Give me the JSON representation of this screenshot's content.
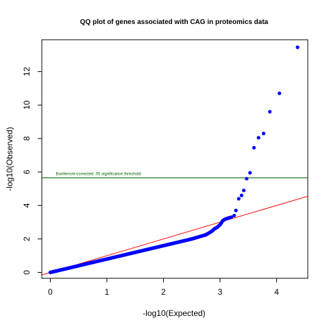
{
  "chart_data": {
    "type": "scatter",
    "title": "QQ plot of genes associated with CAG in proteomics data",
    "xlabel": "-log10(Expected)",
    "ylabel": "-log10(Observed)",
    "xlim": [
      -0.15,
      4.55
    ],
    "ylim": [
      -0.35,
      13.9
    ],
    "xticks": [
      0,
      1,
      2,
      3,
      4
    ],
    "yticks": [
      0,
      2,
      4,
      6,
      8,
      10,
      12
    ],
    "grid": false,
    "legend": "none",
    "point_color": "#0000ff",
    "reference_line": {
      "slope": 1,
      "intercept": 0,
      "color": "#ff0000"
    },
    "threshold": {
      "y": 5.65,
      "color": "#006400",
      "label": "Bonferroni-corrected .05 significance threshold"
    },
    "points": [
      [
        0.0,
        0.0
      ],
      [
        0.05,
        0.04
      ],
      [
        0.1,
        0.08
      ],
      [
        0.15,
        0.12
      ],
      [
        0.2,
        0.16
      ],
      [
        0.25,
        0.2
      ],
      [
        0.3,
        0.24
      ],
      [
        0.35,
        0.28
      ],
      [
        0.4,
        0.32
      ],
      [
        0.45,
        0.36
      ],
      [
        0.5,
        0.4
      ],
      [
        0.55,
        0.44
      ],
      [
        0.6,
        0.48
      ],
      [
        0.65,
        0.52
      ],
      [
        0.7,
        0.56
      ],
      [
        0.75,
        0.6
      ],
      [
        0.8,
        0.64
      ],
      [
        0.85,
        0.68
      ],
      [
        0.9,
        0.72
      ],
      [
        0.95,
        0.76
      ],
      [
        1.0,
        0.8
      ],
      [
        1.05,
        0.84
      ],
      [
        1.1,
        0.88
      ],
      [
        1.15,
        0.92
      ],
      [
        1.2,
        0.96
      ],
      [
        1.25,
        1.0
      ],
      [
        1.3,
        1.04
      ],
      [
        1.35,
        1.08
      ],
      [
        1.4,
        1.12
      ],
      [
        1.45,
        1.16
      ],
      [
        1.5,
        1.2
      ],
      [
        1.55,
        1.24
      ],
      [
        1.6,
        1.28
      ],
      [
        1.65,
        1.32
      ],
      [
        1.7,
        1.36
      ],
      [
        1.75,
        1.4
      ],
      [
        1.8,
        1.44
      ],
      [
        1.85,
        1.48
      ],
      [
        1.9,
        1.52
      ],
      [
        1.95,
        1.56
      ],
      [
        2.0,
        1.6
      ],
      [
        2.05,
        1.64
      ],
      [
        2.1,
        1.68
      ],
      [
        2.15,
        1.72
      ],
      [
        2.2,
        1.76
      ],
      [
        2.25,
        1.8
      ],
      [
        2.3,
        1.84
      ],
      [
        2.35,
        1.88
      ],
      [
        2.4,
        1.92
      ],
      [
        2.45,
        1.96
      ],
      [
        2.5,
        2.0
      ],
      [
        2.55,
        2.05
      ],
      [
        2.6,
        2.1
      ],
      [
        2.65,
        2.15
      ],
      [
        2.7,
        2.2
      ],
      [
        2.75,
        2.25
      ],
      [
        2.8,
        2.35
      ],
      [
        2.85,
        2.45
      ],
      [
        2.9,
        2.6
      ],
      [
        2.95,
        2.7
      ],
      [
        3.0,
        2.85
      ],
      [
        3.05,
        3.1
      ],
      [
        3.1,
        3.2
      ],
      [
        3.15,
        3.25
      ],
      [
        3.2,
        3.3
      ],
      [
        3.25,
        3.4
      ],
      [
        3.28,
        3.7
      ],
      [
        3.33,
        4.4
      ],
      [
        3.38,
        4.6
      ],
      [
        3.42,
        4.9
      ],
      [
        3.47,
        5.6
      ],
      [
        3.53,
        5.95
      ],
      [
        3.6,
        7.45
      ],
      [
        3.68,
        8.05
      ],
      [
        3.77,
        8.3
      ],
      [
        3.88,
        9.6
      ],
      [
        4.05,
        10.7
      ],
      [
        4.37,
        13.45
      ]
    ]
  }
}
